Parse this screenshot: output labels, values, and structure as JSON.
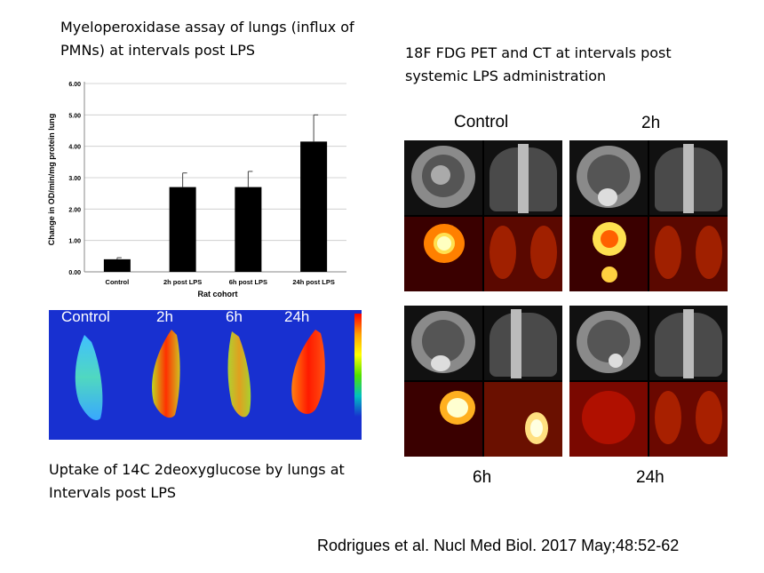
{
  "mpo_caption": "Myeloperoxidase assay of lungs (influx of PMNs) at intervals post LPS",
  "pet_caption": "18F FDG PET and CT at intervals post systemic LPS administration",
  "uptake_caption": "Uptake of 14C 2deoxyglucose by lungs at Intervals post LPS",
  "citation": "Rodrigues et al. Nucl Med Biol. 2017 May;48:52-62",
  "autoradiograph_labels": [
    "Control",
    "2h",
    "6h",
    "24h"
  ],
  "pet_labels": {
    "top_left": "Control",
    "top_right": "2h",
    "bottom_left": "6h",
    "bottom_right": "24h"
  },
  "chart_data": {
    "type": "bar",
    "categories": [
      "Control",
      "2h post LPS",
      "6h post LPS",
      "24h post LPS"
    ],
    "values": [
      0.4,
      2.7,
      2.7,
      4.15
    ],
    "error": [
      0.05,
      0.45,
      0.5,
      0.85
    ],
    "xlabel": "Rat cohort",
    "ylabel": "Change in OD/min/mg protein lung",
    "ylim": [
      0,
      6
    ],
    "yticks": [
      "0.00",
      "1.00",
      "2.00",
      "3.00",
      "4.00",
      "5.00",
      "6.00"
    ],
    "grid": true,
    "bar_color": "#000000"
  }
}
